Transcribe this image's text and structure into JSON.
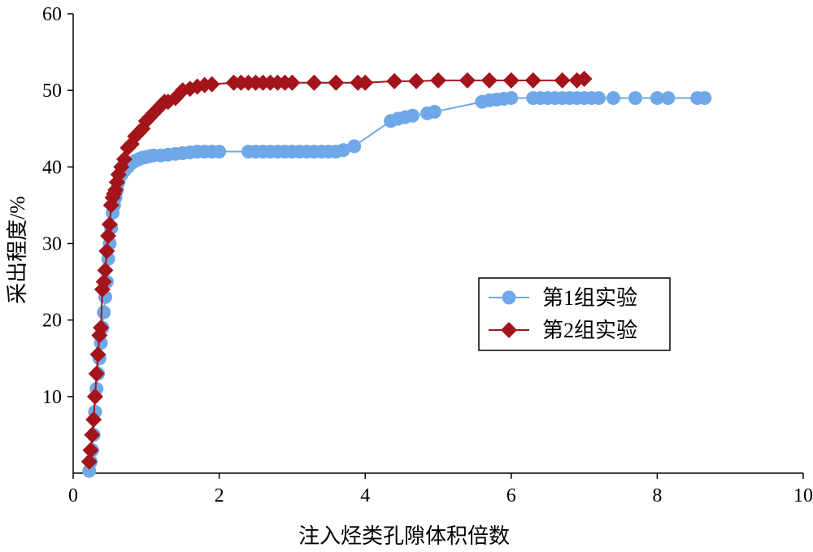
{
  "chart_data": {
    "type": "line",
    "xlabel": "注入烃类孔隙体积倍数",
    "ylabel": "采出程度/%",
    "xlim": [
      0,
      10
    ],
    "ylim": [
      0,
      60
    ],
    "xticks": [
      0,
      2,
      4,
      6,
      8,
      10
    ],
    "yticks": [
      10,
      20,
      30,
      40,
      50,
      60
    ],
    "grid": false,
    "legend_position": "center-right",
    "series": [
      {
        "name": "第1组实验",
        "color": "#6fa8e8",
        "marker": "circle",
        "x": [
          0.22,
          0.24,
          0.26,
          0.28,
          0.3,
          0.32,
          0.34,
          0.36,
          0.38,
          0.4,
          0.42,
          0.44,
          0.46,
          0.48,
          0.5,
          0.52,
          0.54,
          0.56,
          0.58,
          0.6,
          0.62,
          0.66,
          0.7,
          0.75,
          0.8,
          0.85,
          0.9,
          0.95,
          1.0,
          1.05,
          1.1,
          1.2,
          1.3,
          1.4,
          1.5,
          1.6,
          1.7,
          1.8,
          1.9,
          2.0,
          2.4,
          2.5,
          2.6,
          2.7,
          2.8,
          2.9,
          3.0,
          3.1,
          3.2,
          3.3,
          3.4,
          3.5,
          3.6,
          3.7,
          3.85,
          4.35,
          4.45,
          4.55,
          4.65,
          4.85,
          4.95,
          5.6,
          5.7,
          5.8,
          5.9,
          6.0,
          6.3,
          6.4,
          6.5,
          6.6,
          6.7,
          6.8,
          6.9,
          7.0,
          7.1,
          7.2,
          7.4,
          7.7,
          8.0,
          8.15,
          8.55,
          8.65
        ],
        "y": [
          0.3,
          1.5,
          3,
          5,
          8,
          11,
          13,
          15,
          17,
          19,
          21,
          23,
          25,
          28,
          30,
          32,
          34,
          35,
          36,
          37,
          38,
          39,
          39.5,
          40,
          40.5,
          40.8,
          41,
          41.2,
          41.3,
          41.4,
          41.5,
          41.5,
          41.6,
          41.7,
          41.8,
          41.9,
          42,
          42,
          42,
          42,
          42,
          42,
          42,
          42,
          42,
          42,
          42,
          42,
          42,
          42,
          42,
          42,
          42,
          42.2,
          42.7,
          46,
          46.3,
          46.5,
          46.7,
          47,
          47.2,
          48.5,
          48.7,
          48.8,
          48.9,
          49,
          49,
          49,
          49,
          49,
          49,
          49,
          49,
          49,
          49,
          49,
          49,
          49,
          49,
          49,
          49,
          49
        ]
      },
      {
        "name": "第2组实验",
        "color": "#a3141b",
        "marker": "diamond",
        "x": [
          0.22,
          0.24,
          0.26,
          0.28,
          0.3,
          0.32,
          0.34,
          0.36,
          0.38,
          0.4,
          0.42,
          0.44,
          0.46,
          0.48,
          0.5,
          0.52,
          0.54,
          0.56,
          0.58,
          0.6,
          0.62,
          0.66,
          0.7,
          0.75,
          0.8,
          0.85,
          0.9,
          0.95,
          1.0,
          1.05,
          1.1,
          1.15,
          1.2,
          1.25,
          1.3,
          1.4,
          1.5,
          1.6,
          1.7,
          1.8,
          1.9,
          2.2,
          2.3,
          2.4,
          2.5,
          2.6,
          2.7,
          2.8,
          2.9,
          3.0,
          3.3,
          3.6,
          3.9,
          4.0,
          4.4,
          4.7,
          5.0,
          5.4,
          5.7,
          6.0,
          6.3,
          6.7,
          6.9,
          7.0
        ],
        "y": [
          1.5,
          3,
          5,
          7,
          10,
          13,
          15.5,
          18,
          19,
          24,
          25,
          26.5,
          29,
          31,
          32.5,
          35,
          36,
          36.5,
          37,
          38,
          39,
          40,
          41,
          42.5,
          43,
          44,
          44.5,
          45,
          46,
          46.5,
          47,
          47.5,
          48,
          48.5,
          48.5,
          49,
          50,
          50.2,
          50.5,
          50.7,
          50.8,
          51,
          51,
          51,
          51,
          51,
          51,
          51,
          51,
          51,
          51,
          51,
          51,
          51,
          51.2,
          51.2,
          51.3,
          51.3,
          51.3,
          51.3,
          51.3,
          51.3,
          51.3,
          51.5
        ]
      }
    ]
  }
}
